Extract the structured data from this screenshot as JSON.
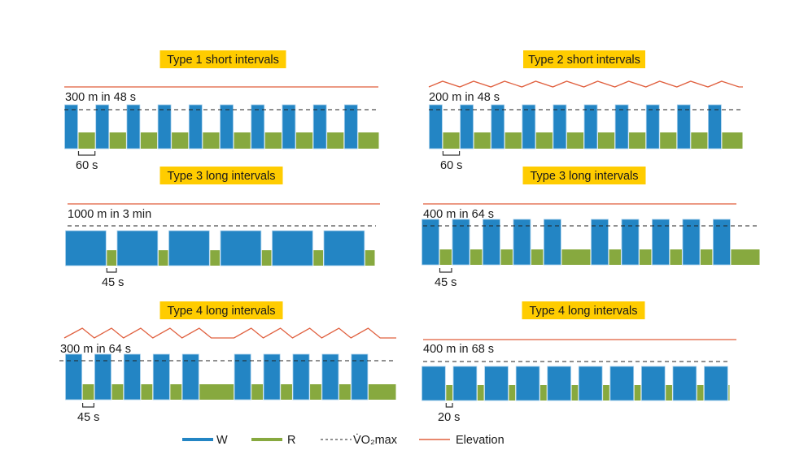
{
  "chart_data": {
    "type": "diagram",
    "title": "",
    "colors": {
      "work": "#2385c4",
      "work_edge": "#a8d0ec",
      "rest": "#87a93f",
      "vo2max": "#222222",
      "elevation": "#e0603f",
      "title_bg": "#ffcc00"
    },
    "legend": [
      {
        "key": "work",
        "label": "W",
        "style": "solid-thick"
      },
      {
        "key": "rest",
        "label": "R",
        "style": "solid-thick"
      },
      {
        "key": "vo2max",
        "label": "V̇O₂max",
        "style": "dashed"
      },
      {
        "key": "elevation",
        "label": "Elevation",
        "style": "solid-thin"
      }
    ],
    "panels": [
      {
        "title": "Type 1 short intervals",
        "interval_label": "300 m in 48 s",
        "rest_label": "60 s",
        "elevation": "flat",
        "intensity": {
          "work": "above V̇O₂max",
          "rest": "below V̇O₂max"
        },
        "segments_s": [
          [
            "W",
            48
          ],
          [
            "R",
            60
          ],
          [
            "W",
            48
          ],
          [
            "R",
            60
          ],
          [
            "W",
            48
          ],
          [
            "R",
            60
          ],
          [
            "W",
            48
          ],
          [
            "R",
            60
          ],
          [
            "W",
            48
          ],
          [
            "R",
            60
          ],
          [
            "W",
            48
          ],
          [
            "R",
            60
          ],
          [
            "W",
            48
          ],
          [
            "R",
            60
          ],
          [
            "W",
            48
          ],
          [
            "R",
            60
          ],
          [
            "W",
            48
          ],
          [
            "R",
            60
          ],
          [
            "W",
            48
          ],
          [
            "R",
            74
          ]
        ]
      },
      {
        "title": "Type 2 short intervals",
        "interval_label": "200 m in 48 s",
        "rest_label": "60 s",
        "elevation": "hills",
        "intensity": {
          "work": "above V̇O₂max",
          "rest": "below V̇O₂max"
        },
        "segments_s": [
          [
            "W",
            48
          ],
          [
            "R",
            60
          ],
          [
            "W",
            48
          ],
          [
            "R",
            60
          ],
          [
            "W",
            48
          ],
          [
            "R",
            60
          ],
          [
            "W",
            48
          ],
          [
            "R",
            60
          ],
          [
            "W",
            48
          ],
          [
            "R",
            60
          ],
          [
            "W",
            48
          ],
          [
            "R",
            60
          ],
          [
            "W",
            48
          ],
          [
            "R",
            60
          ],
          [
            "W",
            48
          ],
          [
            "R",
            60
          ],
          [
            "W",
            48
          ],
          [
            "R",
            60
          ],
          [
            "W",
            48
          ],
          [
            "R",
            74
          ]
        ]
      },
      {
        "title": "Type 3 long intervals",
        "interval_label": "1000 m in 3 min",
        "rest_label": "45 s",
        "elevation": "flat",
        "intensity": {
          "work": "below V̇O₂max",
          "rest": "below V̇O₂max"
        },
        "segments_s": [
          [
            "W",
            180
          ],
          [
            "R",
            45
          ],
          [
            "W",
            180
          ],
          [
            "R",
            45
          ],
          [
            "W",
            180
          ],
          [
            "R",
            45
          ],
          [
            "W",
            180
          ],
          [
            "R",
            45
          ],
          [
            "W",
            180
          ],
          [
            "R",
            45
          ],
          [
            "W",
            180
          ],
          [
            "R",
            45
          ]
        ]
      },
      {
        "title": "Type 3 long intervals",
        "interval_label": "400 m in 64 s",
        "rest_label": "45 s",
        "elevation": "flat",
        "intensity": {
          "work": "above V̇O₂max",
          "rest": "below V̇O₂max"
        },
        "segments_s": [
          [
            "W",
            64
          ],
          [
            "R",
            45
          ],
          [
            "W",
            64
          ],
          [
            "R",
            45
          ],
          [
            "W",
            64
          ],
          [
            "R",
            45
          ],
          [
            "W",
            64
          ],
          [
            "R",
            45
          ],
          [
            "W",
            64
          ],
          [
            "R",
            105
          ],
          [
            "W",
            64
          ],
          [
            "R",
            45
          ],
          [
            "W",
            64
          ],
          [
            "R",
            45
          ],
          [
            "W",
            64
          ],
          [
            "R",
            45
          ],
          [
            "W",
            64
          ],
          [
            "R",
            45
          ],
          [
            "W",
            64
          ],
          [
            "R",
            105
          ]
        ]
      },
      {
        "title": "Type 4 long intervals",
        "interval_label": "300 m in 64 s",
        "rest_label": "45 s",
        "elevation": "hills",
        "intensity": {
          "work": "above V̇O₂max",
          "rest": "below V̇O₂max"
        },
        "segments_s": [
          [
            "W",
            64
          ],
          [
            "R",
            45
          ],
          [
            "W",
            64
          ],
          [
            "R",
            45
          ],
          [
            "W",
            64
          ],
          [
            "R",
            45
          ],
          [
            "W",
            64
          ],
          [
            "R",
            45
          ],
          [
            "W",
            64
          ],
          [
            "R",
            130
          ],
          [
            "W",
            64
          ],
          [
            "R",
            45
          ],
          [
            "W",
            64
          ],
          [
            "R",
            45
          ],
          [
            "W",
            64
          ],
          [
            "R",
            45
          ],
          [
            "W",
            64
          ],
          [
            "R",
            45
          ],
          [
            "W",
            64
          ],
          [
            "R",
            105
          ]
        ]
      },
      {
        "title": "Type 4 long intervals",
        "interval_label": "400 m in 68 s",
        "rest_label": "20 s",
        "elevation": "flat",
        "intensity": {
          "work": "below V̇O₂max",
          "rest": "below V̇O₂max"
        },
        "segments_s": [
          [
            "W",
            68
          ],
          [
            "R",
            20
          ],
          [
            "W",
            68
          ],
          [
            "R",
            20
          ],
          [
            "W",
            68
          ],
          [
            "R",
            20
          ],
          [
            "W",
            68
          ],
          [
            "R",
            20
          ],
          [
            "W",
            68
          ],
          [
            "R",
            20
          ],
          [
            "W",
            68
          ],
          [
            "R",
            20
          ],
          [
            "W",
            68
          ],
          [
            "R",
            20
          ],
          [
            "W",
            68
          ],
          [
            "R",
            20
          ],
          [
            "W",
            68
          ],
          [
            "R",
            20
          ],
          [
            "W",
            68
          ],
          [
            "R",
            5
          ]
        ]
      }
    ]
  }
}
